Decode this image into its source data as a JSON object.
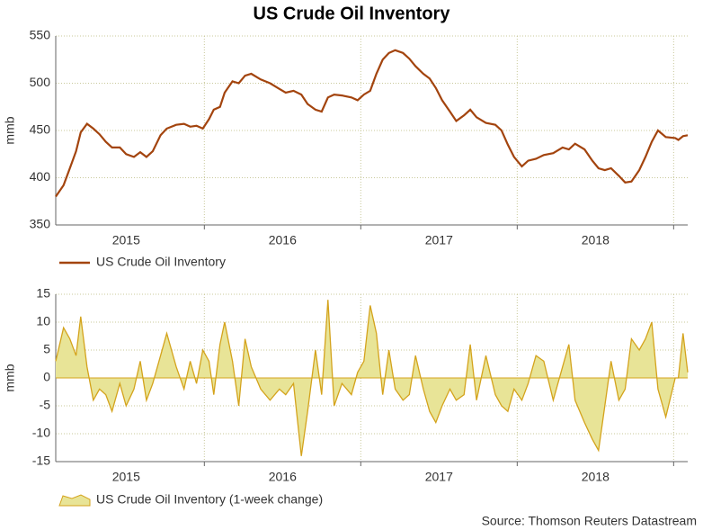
{
  "title": "US Crude Oil Inventory",
  "source": "Source: Thomson Reuters Datastream",
  "chart_data": [
    {
      "type": "line",
      "ylabel": "mmb",
      "x": [
        2015.05,
        2015.1,
        2015.14,
        2015.18,
        2015.21,
        2015.25,
        2015.29,
        2015.33,
        2015.37,
        2015.41,
        2015.46,
        2015.5,
        2015.55,
        2015.59,
        2015.63,
        2015.67,
        2015.72,
        2015.76,
        2015.82,
        2015.87,
        2015.91,
        2015.95,
        2015.99,
        2016.03,
        2016.06,
        2016.1,
        2016.13,
        2016.18,
        2016.22,
        2016.26,
        2016.3,
        2016.36,
        2016.42,
        2016.48,
        2016.52,
        2016.57,
        2016.62,
        2016.66,
        2016.71,
        2016.75,
        2016.79,
        2016.83,
        2016.88,
        2016.94,
        2016.98,
        2017.02,
        2017.06,
        2017.1,
        2017.14,
        2017.18,
        2017.22,
        2017.27,
        2017.31,
        2017.35,
        2017.4,
        2017.44,
        2017.48,
        2017.52,
        2017.57,
        2017.61,
        2017.66,
        2017.7,
        2017.74,
        2017.8,
        2017.86,
        2017.9,
        2017.94,
        2017.98,
        2018.03,
        2018.07,
        2018.12,
        2018.17,
        2018.23,
        2018.29,
        2018.33,
        2018.37,
        2018.43,
        2018.48,
        2018.52,
        2018.56,
        2018.6,
        2018.65,
        2018.69,
        2018.73,
        2018.78,
        2018.82,
        2018.86,
        2018.9,
        2018.95,
        2019.01,
        2019.03,
        2019.06,
        2019.09
      ],
      "series": [
        {
          "name": "US Crude Oil Inventory",
          "color": "#a3440e",
          "values": [
            380,
            392,
            410,
            428,
            448,
            457,
            452,
            446,
            438,
            432,
            432,
            425,
            422,
            427,
            422,
            428,
            445,
            452,
            456,
            457,
            454,
            455,
            452,
            462,
            472,
            475,
            490,
            502,
            500,
            508,
            510,
            504,
            500,
            494,
            490,
            492,
            488,
            478,
            472,
            470,
            485,
            488,
            487,
            485,
            482,
            488,
            492,
            510,
            525,
            532,
            535,
            532,
            526,
            518,
            510,
            505,
            495,
            482,
            470,
            460,
            466,
            472,
            464,
            458,
            456,
            450,
            435,
            422,
            412,
            418,
            420,
            424,
            426,
            432,
            430,
            436,
            430,
            418,
            410,
            408,
            410,
            402,
            395,
            396,
            408,
            422,
            438,
            450,
            443,
            442,
            440,
            444,
            445
          ]
        }
      ],
      "xlim": [
        2015.05,
        2019.09
      ],
      "xticks": [
        {
          "value": 2015.5,
          "label": "2015"
        },
        {
          "value": 2016.5,
          "label": "2016"
        },
        {
          "value": 2017.5,
          "label": "2017"
        },
        {
          "value": 2018.5,
          "label": "2018"
        }
      ],
      "xgrid": [
        2016,
        2017,
        2018,
        2019
      ],
      "ylim": [
        350,
        550
      ],
      "yticks": [
        350,
        400,
        450,
        500,
        550
      ],
      "grid": true
    },
    {
      "type": "area",
      "ylabel": "mmb",
      "x": [
        2015.05,
        2015.1,
        2015.14,
        2015.18,
        2015.21,
        2015.25,
        2015.29,
        2015.33,
        2015.37,
        2015.41,
        2015.46,
        2015.5,
        2015.55,
        2015.59,
        2015.63,
        2015.67,
        2015.72,
        2015.76,
        2015.82,
        2015.87,
        2015.91,
        2015.95,
        2015.99,
        2016.03,
        2016.06,
        2016.1,
        2016.13,
        2016.18,
        2016.22,
        2016.26,
        2016.3,
        2016.36,
        2016.42,
        2016.48,
        2016.52,
        2016.57,
        2016.62,
        2016.66,
        2016.71,
        2016.75,
        2016.79,
        2016.83,
        2016.88,
        2016.94,
        2016.98,
        2017.02,
        2017.06,
        2017.1,
        2017.14,
        2017.18,
        2017.22,
        2017.27,
        2017.31,
        2017.35,
        2017.4,
        2017.44,
        2017.48,
        2017.52,
        2017.57,
        2017.61,
        2017.66,
        2017.7,
        2017.74,
        2017.8,
        2017.86,
        2017.9,
        2017.94,
        2017.98,
        2018.03,
        2018.07,
        2018.12,
        2018.17,
        2018.23,
        2018.29,
        2018.33,
        2018.37,
        2018.43,
        2018.48,
        2018.52,
        2018.56,
        2018.6,
        2018.65,
        2018.69,
        2018.73,
        2018.78,
        2018.82,
        2018.86,
        2018.9,
        2018.95,
        2019.01,
        2019.03,
        2019.06,
        2019.09
      ],
      "series": [
        {
          "name": "US Crude Oil Inventory (1-week change)",
          "color": "#d4a31c",
          "fill": "#e8e497",
          "values": [
            3,
            9,
            7,
            4,
            11,
            2,
            -4,
            -2,
            -3,
            -6,
            -1,
            -5,
            -2,
            3,
            -4,
            -1,
            4,
            8,
            2,
            -2,
            3,
            -1,
            5,
            3,
            -3,
            6,
            10,
            3,
            -5,
            7,
            2,
            -2,
            -4,
            -2,
            -3,
            -1,
            -14,
            -6,
            5,
            -3,
            14,
            -5,
            -1,
            -3,
            1,
            3,
            13,
            8,
            -3,
            5,
            -2,
            -4,
            -3,
            4,
            -2,
            -6,
            -8,
            -5,
            -2,
            -4,
            -3,
            6,
            -4,
            4,
            -3,
            -5,
            -6,
            -2,
            -4,
            -1,
            4,
            3,
            -4,
            2,
            6,
            -4,
            -8,
            -11,
            -13,
            -5,
            3,
            -4,
            -2,
            7,
            5,
            7,
            10,
            -2,
            -7,
            0,
            0,
            8,
            1
          ]
        }
      ],
      "xlim": [
        2015.05,
        2019.09
      ],
      "xticks": [
        {
          "value": 2015.5,
          "label": "2015"
        },
        {
          "value": 2016.5,
          "label": "2016"
        },
        {
          "value": 2017.5,
          "label": "2017"
        },
        {
          "value": 2018.5,
          "label": "2018"
        }
      ],
      "xgrid": [
        2016,
        2017,
        2018,
        2019
      ],
      "ylim": [
        -15,
        15
      ],
      "yticks": [
        -15,
        -10,
        -5,
        0,
        5,
        10,
        15
      ],
      "grid": true
    }
  ]
}
